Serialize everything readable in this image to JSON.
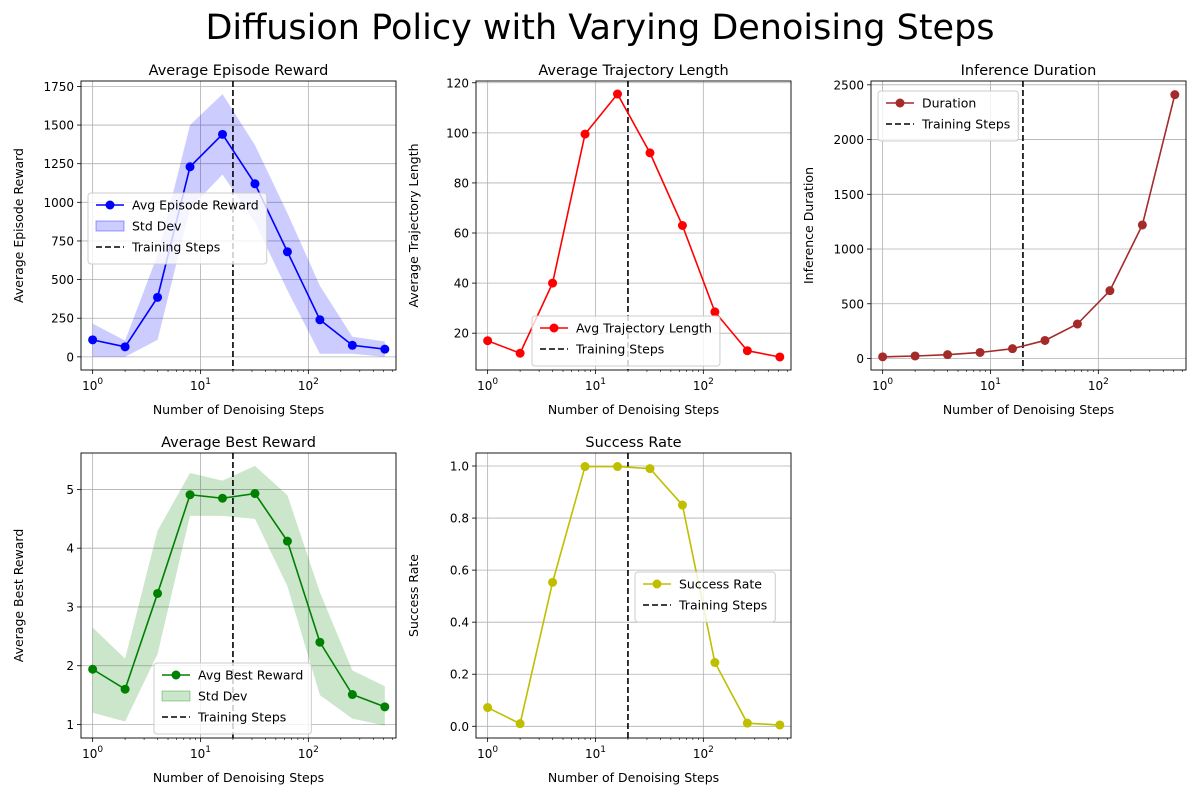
{
  "figure_title": "Diffusion Policy with Varying Denoising Steps",
  "colors": {
    "reward": "#0000ff",
    "reward_band": "#0000ff",
    "length": "#ff0000",
    "duration": "#a52a2a",
    "best": "#008000",
    "best_band": "#008000",
    "success": "#bfbf00",
    "training": "#000000"
  },
  "chart_data": [
    {
      "id": "reward",
      "type": "line",
      "title": "Average Episode Reward",
      "xlabel": "Number of Denoising Steps",
      "ylabel": "Average Episode Reward",
      "x_scale": "log",
      "x": [
        1,
        2,
        4,
        8,
        16,
        32,
        64,
        128,
        256,
        512
      ],
      "series": [
        {
          "name": "Avg Episode Reward",
          "values": [
            110,
            65,
            385,
            1230,
            1440,
            1120,
            680,
            240,
            75,
            50
          ],
          "color_key": "reward"
        }
      ],
      "band": {
        "name": "Std Dev",
        "lower": [
          0,
          0,
          110,
          960,
          1180,
          870,
          430,
          20,
          20,
          0
        ],
        "upper": [
          215,
          105,
          660,
          1500,
          1700,
          1370,
          930,
          460,
          130,
          100
        ],
        "color_key": "reward_band"
      },
      "vline": {
        "name": "Training Steps",
        "x": 20
      },
      "yticks": [
        0,
        250,
        500,
        750,
        1000,
        1250,
        1500,
        1750
      ],
      "ytick_labels": [
        "0",
        "250",
        "500",
        "750",
        "1000",
        "1250",
        "1500",
        "1750"
      ],
      "xticks": [
        1,
        10,
        100
      ],
      "xtick_labels": [
        [
          "10",
          "0"
        ],
        [
          "10",
          "1"
        ],
        [
          "10",
          "2"
        ]
      ],
      "xlim": [
        0.78,
        650
      ],
      "ylim": [
        -85,
        1785
      ],
      "grid": true,
      "legend": "center-left"
    },
    {
      "id": "length",
      "type": "line",
      "title": "Average Trajectory Length",
      "xlabel": "Number of Denoising Steps",
      "ylabel": "Average Trajectory Length",
      "x_scale": "log",
      "x": [
        1,
        2,
        4,
        8,
        16,
        32,
        64,
        128,
        256,
        512
      ],
      "series": [
        {
          "name": "Avg Trajectory Length",
          "values": [
            17,
            12,
            40,
            99.5,
            115.5,
            92,
            63,
            28.5,
            13,
            10.5
          ],
          "color_key": "length"
        }
      ],
      "vline": {
        "name": "Training Steps",
        "x": 20
      },
      "yticks": [
        20,
        40,
        60,
        80,
        100,
        120
      ],
      "ytick_labels": [
        "20",
        "40",
        "60",
        "80",
        "100",
        "120"
      ],
      "xticks": [
        1,
        10,
        100
      ],
      "xtick_labels": [
        [
          "10",
          "0"
        ],
        [
          "10",
          "1"
        ],
        [
          "10",
          "2"
        ]
      ],
      "xlim": [
        0.78,
        650
      ],
      "ylim": [
        5.3,
        120.7
      ],
      "grid": true,
      "legend": "lower-center"
    },
    {
      "id": "duration",
      "type": "line",
      "title": "Inference Duration",
      "xlabel": "Number of Denoising Steps",
      "ylabel": "Inference Duration",
      "x_scale": "log",
      "x": [
        1,
        2,
        4,
        8,
        16,
        32,
        64,
        128,
        256,
        512
      ],
      "series": [
        {
          "name": "Duration",
          "values": [
            15,
            23,
            35,
            55,
            90,
            165,
            315,
            620,
            1220,
            2410
          ],
          "color_key": "duration"
        }
      ],
      "vline": {
        "name": "Training Steps",
        "x": 20
      },
      "yticks": [
        0,
        500,
        1000,
        1500,
        2000,
        2500
      ],
      "ytick_labels": [
        "0",
        "500",
        "1000",
        "1500",
        "2000",
        "2500"
      ],
      "xticks": [
        1,
        10,
        100
      ],
      "xtick_labels": [
        [
          "10",
          "0"
        ],
        [
          "10",
          "1"
        ],
        [
          "10",
          "2"
        ]
      ],
      "xlim": [
        0.78,
        650
      ],
      "ylim": [
        -105,
        2535
      ],
      "grid": true,
      "legend": "top-left"
    },
    {
      "id": "best",
      "type": "line",
      "title": "Average Best Reward",
      "xlabel": "Number of Denoising Steps",
      "ylabel": "Average Best Reward",
      "x_scale": "log",
      "x": [
        1,
        2,
        4,
        8,
        16,
        32,
        64,
        128,
        256,
        512
      ],
      "series": [
        {
          "name": "Avg Best Reward",
          "values": [
            1.94,
            1.6,
            3.23,
            4.91,
            4.85,
            4.93,
            4.12,
            2.4,
            1.51,
            1.3
          ],
          "color_key": "best"
        }
      ],
      "band": {
        "name": "Std Dev",
        "lower": [
          1.2,
          1.05,
          2.2,
          4.55,
          4.55,
          4.5,
          3.35,
          1.5,
          1.1,
          0.98
        ],
        "upper": [
          2.65,
          2.12,
          4.3,
          5.28,
          5.15,
          5.4,
          4.9,
          3.25,
          1.92,
          1.65
        ],
        "color_key": "best_band"
      },
      "vline": {
        "name": "Training Steps",
        "x": 20
      },
      "yticks": [
        1,
        2,
        3,
        4,
        5
      ],
      "ytick_labels": [
        "1",
        "2",
        "3",
        "4",
        "5"
      ],
      "xticks": [
        1,
        10,
        100
      ],
      "xtick_labels": [
        [
          "10",
          "0"
        ],
        [
          "10",
          "1"
        ],
        [
          "10",
          "2"
        ]
      ],
      "xlim": [
        0.78,
        650
      ],
      "ylim": [
        0.77,
        5.62
      ],
      "grid": true,
      "legend": "lower-center"
    },
    {
      "id": "success",
      "type": "line",
      "title": "Success Rate",
      "xlabel": "Number of Denoising Steps",
      "ylabel": "Success Rate",
      "x_scale": "log",
      "x": [
        1,
        2,
        4,
        8,
        16,
        32,
        64,
        128,
        256,
        512
      ],
      "series": [
        {
          "name": "Success Rate",
          "values": [
            0.072,
            0.01,
            0.553,
            0.998,
            0.998,
            0.99,
            0.85,
            0.245,
            0.012,
            0.005
          ],
          "color_key": "success"
        }
      ],
      "vline": {
        "name": "Training Steps",
        "x": 20
      },
      "yticks": [
        0,
        0.2,
        0.4,
        0.6,
        0.8,
        1
      ],
      "ytick_labels": [
        "0.0",
        "0.2",
        "0.4",
        "0.6",
        "0.8",
        "1.0"
      ],
      "xticks": [
        1,
        10,
        100
      ],
      "xtick_labels": [
        [
          "10",
          "0"
        ],
        [
          "10",
          "1"
        ],
        [
          "10",
          "2"
        ]
      ],
      "xlim": [
        0.78,
        650
      ],
      "ylim": [
        -0.045,
        1.05
      ],
      "grid": true,
      "legend": "center-right"
    }
  ]
}
